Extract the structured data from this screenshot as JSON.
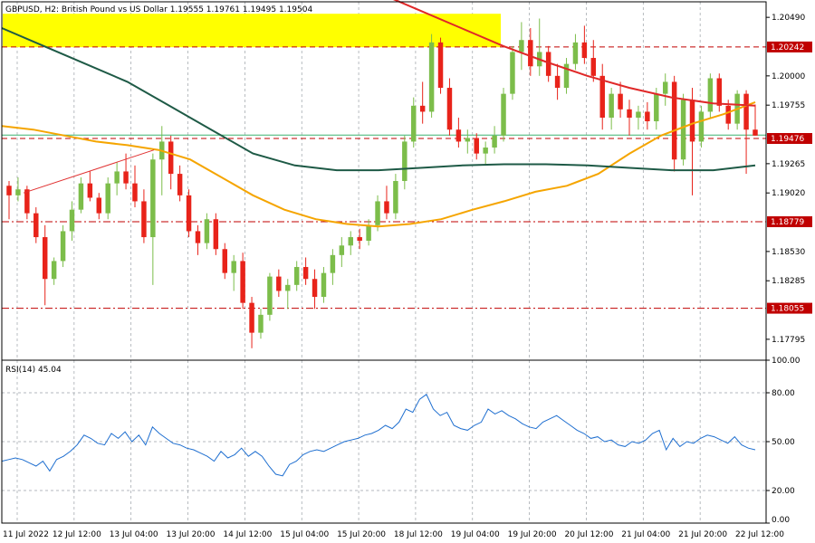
{
  "chart_data": [
    {
      "type": "candlestick",
      "title": "GBPUSD, H2:  British Pound vs US Dollar  1.19555 1.19761 1.19495 1.19504",
      "y_ticks": [
        "1.20490",
        "1.20000",
        "1.19755",
        "1.19265",
        "1.19020",
        "1.18530",
        "1.18285",
        "1.17795"
      ],
      "ylim": [
        1.1762,
        1.2062
      ],
      "x_labels": [
        "11 Jul 2022",
        "12 Jul 12:00",
        "13 Jul 04:00",
        "13 Jul 20:00",
        "14 Jul 12:00",
        "15 Jul 04:00",
        "15 Jul 20:00",
        "18 Jul 12:00",
        "19 Jul 04:00",
        "19 Jul 20:00",
        "20 Jul 12:00",
        "21 Jul 04:00",
        "21 Jul 20:00",
        "22 Jul 12:00"
      ],
      "grid": true,
      "price_levels": [
        {
          "label": "1.20242",
          "value": 1.20242,
          "style": "dashed",
          "color": "#c00000"
        },
        {
          "label": "1.19476",
          "value": 1.19476,
          "style": "dashed",
          "color": "#c00000"
        },
        {
          "label": "1.18779",
          "value": 1.18779,
          "style": "dash-dot",
          "color": "#c00000"
        },
        {
          "label": "1.18055",
          "value": 1.18055,
          "style": "dash-dot",
          "color": "#c00000"
        }
      ],
      "current_price": {
        "value": 1.19504,
        "color": "#3cb371"
      },
      "highlight_zone": {
        "from": 1.2024,
        "to": 1.2052,
        "color": "#ffff00"
      },
      "trendline": {
        "color": "#e03030",
        "points": [
          [
            1.1902
          ],
          [
            1.1938
          ]
        ]
      },
      "moving_averages": [
        {
          "color": "#f5a500",
          "values": [
            1.1958,
            1.1955,
            1.195,
            1.1945,
            1.1942,
            1.1938,
            1.193,
            1.1915,
            1.19,
            1.1888,
            1.188,
            1.1876,
            1.1874,
            1.1876,
            1.188,
            1.1888,
            1.1895,
            1.1903,
            1.1908,
            1.1918,
            1.1935,
            1.195,
            1.196,
            1.1968,
            1.1978
          ]
        },
        {
          "color": "#1e5a46",
          "values": [
            1.204,
            1.2025,
            1.201,
            1.1995,
            1.1975,
            1.1955,
            1.1935,
            1.1925,
            1.1921,
            1.1921,
            1.1923,
            1.1925,
            1.1926,
            1.1926,
            1.1925,
            1.1923,
            1.1921,
            1.1921,
            1.1925
          ]
        },
        {
          "color": "#e02828",
          "values": [
            1.2082,
            1.207,
            1.2055,
            1.204,
            1.2025,
            1.2012,
            1.2,
            1.199,
            1.1982,
            1.1977,
            1.1975
          ]
        }
      ],
      "candles": [
        [
          1.1908,
          1.1912,
          1.188,
          1.19
        ],
        [
          1.19,
          1.1915,
          1.1895,
          1.1905
        ],
        [
          1.1905,
          1.1908,
          1.188,
          1.1885
        ],
        [
          1.1885,
          1.189,
          1.186,
          1.1865
        ],
        [
          1.1865,
          1.1875,
          1.1808,
          1.183
        ],
        [
          1.183,
          1.1848,
          1.1825,
          1.1845
        ],
        [
          1.1845,
          1.1875,
          1.184,
          1.187
        ],
        [
          1.187,
          1.1895,
          1.1862,
          1.1888
        ],
        [
          1.1888,
          1.1915,
          1.1885,
          1.191
        ],
        [
          1.191,
          1.192,
          1.1895,
          1.1898
        ],
        [
          1.1898,
          1.1902,
          1.188,
          1.1885
        ],
        [
          1.1885,
          1.1915,
          1.188,
          1.191
        ],
        [
          1.191,
          1.1928,
          1.19,
          1.192
        ],
        [
          1.192,
          1.1935,
          1.1905,
          1.191
        ],
        [
          1.191,
          1.1925,
          1.189,
          1.1895
        ],
        [
          1.1895,
          1.1905,
          1.186,
          1.1865
        ],
        [
          1.1865,
          1.1935,
          1.1825,
          1.193
        ],
        [
          1.193,
          1.1958,
          1.19,
          1.1945
        ],
        [
          1.1945,
          1.195,
          1.1905,
          1.1918
        ],
        [
          1.1918,
          1.1925,
          1.1895,
          1.19
        ],
        [
          1.19,
          1.1905,
          1.1865,
          1.187
        ],
        [
          1.187,
          1.1875,
          1.185,
          1.186
        ],
        [
          1.186,
          1.1885,
          1.1855,
          1.188
        ],
        [
          1.188,
          1.1885,
          1.185,
          1.1855
        ],
        [
          1.1855,
          1.186,
          1.183,
          1.1835
        ],
        [
          1.1835,
          1.185,
          1.182,
          1.1845
        ],
        [
          1.1845,
          1.1852,
          1.1805,
          1.181
        ],
        [
          1.181,
          1.1815,
          1.1772,
          1.1785
        ],
        [
          1.1785,
          1.1805,
          1.178,
          1.18
        ],
        [
          1.18,
          1.1835,
          1.1795,
          1.1832
        ],
        [
          1.1832,
          1.1838,
          1.1815,
          1.182
        ],
        [
          1.182,
          1.183,
          1.1805,
          1.1825
        ],
        [
          1.1825,
          1.1845,
          1.182,
          1.184
        ],
        [
          1.184,
          1.1848,
          1.1825,
          1.183
        ],
        [
          1.183,
          1.1838,
          1.1805,
          1.1815
        ],
        [
          1.1815,
          1.184,
          1.181,
          1.1835
        ],
        [
          1.1835,
          1.1855,
          1.1825,
          1.185
        ],
        [
          1.185,
          1.1865,
          1.184,
          1.1858
        ],
        [
          1.1858,
          1.187,
          1.185,
          1.1865
        ],
        [
          1.1865,
          1.1872,
          1.1855,
          1.1862
        ],
        [
          1.1862,
          1.188,
          1.1858,
          1.1875
        ],
        [
          1.1875,
          1.19,
          1.187,
          1.1895
        ],
        [
          1.1895,
          1.1908,
          1.188,
          1.1885
        ],
        [
          1.1885,
          1.1918,
          1.188,
          1.1912
        ],
        [
          1.1912,
          1.195,
          1.1905,
          1.1945
        ],
        [
          1.1945,
          1.1982,
          1.194,
          1.1975
        ],
        [
          1.1975,
          1.1995,
          1.196,
          1.197
        ],
        [
          1.197,
          1.2035,
          1.1965,
          1.2028
        ],
        [
          1.2028,
          1.2032,
          1.1985,
          1.199
        ],
        [
          1.199,
          1.1998,
          1.195,
          1.1955
        ],
        [
          1.1955,
          1.1965,
          1.194,
          1.1945
        ],
        [
          1.1945,
          1.1955,
          1.1935,
          1.1948
        ],
        [
          1.1948,
          1.1952,
          1.193,
          1.1935
        ],
        [
          1.1935,
          1.1945,
          1.1925,
          1.194
        ],
        [
          1.194,
          1.1958,
          1.1935,
          1.195
        ],
        [
          1.195,
          1.199,
          1.1945,
          1.1985
        ],
        [
          1.1985,
          1.2025,
          1.198,
          1.202
        ],
        [
          1.202,
          1.2045,
          1.2005,
          1.203
        ],
        [
          1.203,
          1.204,
          1.2,
          1.2008
        ],
        [
          1.2008,
          1.2048,
          1.2,
          1.202
        ],
        [
          1.202,
          1.2025,
          1.1995,
          1.2
        ],
        [
          1.2,
          1.201,
          1.198,
          1.199
        ],
        [
          1.199,
          1.2015,
          1.1985,
          1.201
        ],
        [
          1.201,
          1.2035,
          1.2005,
          1.2028
        ],
        [
          1.2028,
          1.2042,
          1.201,
          1.2015
        ],
        [
          1.2015,
          1.203,
          1.1995,
          1.2
        ],
        [
          1.2,
          1.201,
          1.1955,
          1.1965
        ],
        [
          1.1965,
          1.199,
          1.1955,
          1.1985
        ],
        [
          1.1985,
          1.1995,
          1.1965,
          1.1972
        ],
        [
          1.1972,
          1.198,
          1.195,
          1.1965
        ],
        [
          1.1965,
          1.1975,
          1.1955,
          1.197
        ],
        [
          1.197,
          1.1978,
          1.1955,
          1.1962
        ],
        [
          1.1962,
          1.199,
          1.1955,
          1.1985
        ],
        [
          1.1985,
          1.2002,
          1.1975,
          1.1995
        ],
        [
          1.1995,
          1.2,
          1.192,
          1.193
        ],
        [
          1.193,
          1.1985,
          1.1925,
          1.198
        ],
        [
          1.198,
          1.199,
          1.19,
          1.1945
        ],
        [
          1.1945,
          1.1975,
          1.194,
          1.197
        ],
        [
          1.197,
          1.2002,
          1.1965,
          1.1998
        ],
        [
          1.1998,
          1.2002,
          1.197,
          1.1975
        ],
        [
          1.1975,
          1.198,
          1.1955,
          1.196
        ],
        [
          1.196,
          1.1988,
          1.1955,
          1.1985
        ],
        [
          1.1985,
          1.1988,
          1.1918,
          1.1955
        ],
        [
          1.1955,
          1.1976,
          1.195,
          1.195
        ]
      ]
    },
    {
      "type": "line",
      "title": "RSI(14) 45.04",
      "y_ticks": [
        "100.00",
        "80.00",
        "50.00",
        "20.00",
        "0.00"
      ],
      "ylim": [
        0,
        100
      ],
      "levels": [
        80,
        50,
        20
      ],
      "series": [
        {
          "color": "#1f6fd0",
          "values": [
            38,
            39,
            40,
            39,
            37,
            35,
            38,
            32,
            39,
            41,
            44,
            48,
            54,
            52,
            49,
            48,
            55,
            52,
            56,
            50,
            54,
            48,
            59,
            55,
            52,
            49,
            48,
            46,
            45,
            43,
            41,
            38,
            44,
            40,
            42,
            46,
            41,
            44,
            41,
            35,
            30,
            29,
            36,
            38,
            42,
            44,
            45,
            44,
            46,
            48,
            50,
            51,
            52,
            54,
            55,
            57,
            60,
            58,
            62,
            70,
            68,
            76,
            79,
            70,
            66,
            68,
            60,
            58,
            57,
            60,
            62,
            70,
            67,
            69,
            66,
            64,
            61,
            59,
            58,
            62,
            64,
            66,
            63,
            60,
            57,
            55,
            52,
            53,
            50,
            51,
            48,
            47,
            50,
            49,
            51,
            55,
            57,
            45,
            52,
            47,
            50,
            49,
            52,
            54,
            53,
            51,
            49,
            53,
            48,
            46,
            45
          ]
        }
      ]
    }
  ]
}
